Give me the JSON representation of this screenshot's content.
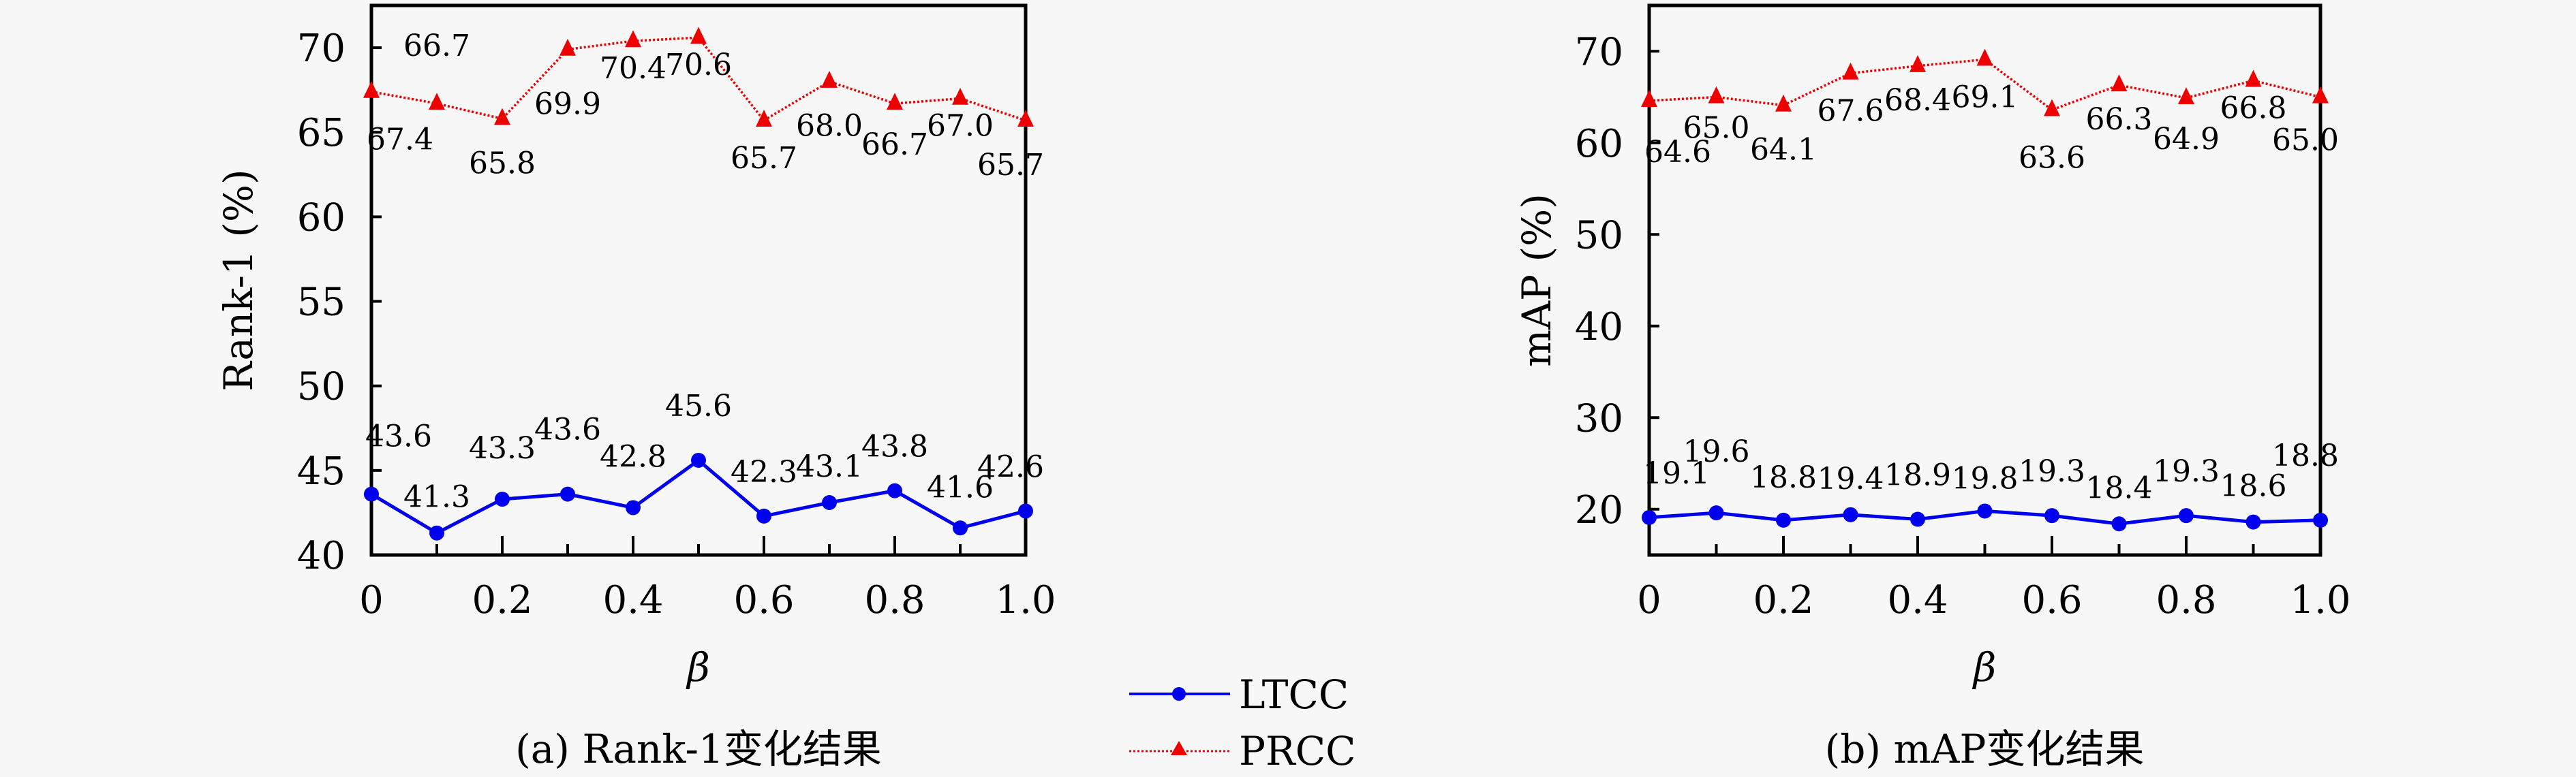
{
  "legend": {
    "entries": [
      {
        "name": "LTCC",
        "color": "#0000ee",
        "marker": "circle",
        "line": "solid"
      },
      {
        "name": "PRCC",
        "color": "#ee0000",
        "marker": "triangle",
        "line": "dotted"
      }
    ]
  },
  "chart_data": [
    {
      "type": "line",
      "title": "",
      "caption": "(a) Rank-1变化结果",
      "xlabel": "β",
      "ylabel": "Rank-1 (%)",
      "x": [
        0,
        0.1,
        0.2,
        0.3,
        0.4,
        0.5,
        0.6,
        0.7,
        0.8,
        0.9,
        1.0
      ],
      "xlim": [
        0,
        1.0
      ],
      "ylim": [
        40,
        72.5
      ],
      "xticks": [
        "0",
        "0.2",
        "0.4",
        "0.6",
        "0.8",
        "1.0"
      ],
      "xtick_values": [
        0,
        0.2,
        0.4,
        0.6,
        0.8,
        1.0
      ],
      "yticks": [
        "40",
        "45",
        "50",
        "55",
        "60",
        "65",
        "70"
      ],
      "ytick_values": [
        40,
        45,
        50,
        55,
        60,
        65,
        70
      ],
      "grid": false,
      "legend_position": "bottom-center, shared between panels",
      "series": [
        {
          "name": "LTCC",
          "values": [
            43.6,
            41.3,
            43.3,
            43.6,
            42.8,
            45.6,
            42.3,
            43.1,
            43.8,
            41.6,
            42.6
          ],
          "labels": [
            "43.6",
            "41.3",
            "43.3",
            "43.6",
            "42.8",
            "45.6",
            "42.3",
            "43.1",
            "43.8",
            "41.6",
            "42.6"
          ]
        },
        {
          "name": "PRCC",
          "values": [
            67.4,
            66.7,
            65.8,
            69.9,
            70.4,
            70.6,
            65.7,
            68.0,
            66.7,
            67.0,
            65.7
          ],
          "labels": [
            "67.4",
            "66.7",
            "65.8",
            "69.9",
            "70.4",
            "70.6",
            "65.7",
            "68.0",
            "66.7",
            "67.0",
            "65.7"
          ]
        }
      ]
    },
    {
      "type": "line",
      "title": "",
      "caption": "(b) mAP变化结果",
      "xlabel": "β",
      "ylabel": "mAP (%)",
      "x": [
        0,
        0.1,
        0.2,
        0.3,
        0.4,
        0.5,
        0.6,
        0.7,
        0.8,
        0.9,
        1.0
      ],
      "xlim": [
        0,
        1.0
      ],
      "ylim": [
        15,
        75
      ],
      "xticks": [
        "0",
        "0.2",
        "0.4",
        "0.6",
        "0.8",
        "1.0"
      ],
      "xtick_values": [
        0,
        0.2,
        0.4,
        0.6,
        0.8,
        1.0
      ],
      "yticks": [
        "20",
        "30",
        "40",
        "50",
        "60",
        "70"
      ],
      "ytick_values": [
        20,
        30,
        40,
        50,
        60,
        70
      ],
      "grid": false,
      "legend_position": "bottom-center, shared between panels",
      "series": [
        {
          "name": "LTCC",
          "values": [
            19.1,
            19.6,
            18.8,
            19.4,
            18.9,
            19.8,
            19.3,
            18.4,
            19.3,
            18.6,
            18.8
          ],
          "labels": [
            "19.1",
            "19.6",
            "18.8",
            "19.4",
            "18.9",
            "19.8",
            "19.3",
            "18.4",
            "19.3",
            "18.6",
            "18.8"
          ]
        },
        {
          "name": "PRCC",
          "values": [
            64.6,
            65.0,
            64.1,
            67.6,
            68.4,
            69.1,
            63.6,
            66.3,
            64.9,
            66.8,
            65.0
          ],
          "labels": [
            "64.6",
            "65.0",
            "64.1",
            "67.6",
            "68.4",
            "69.1",
            "63.6",
            "66.3",
            "64.9",
            "66.8",
            "65.0"
          ]
        }
      ]
    }
  ]
}
